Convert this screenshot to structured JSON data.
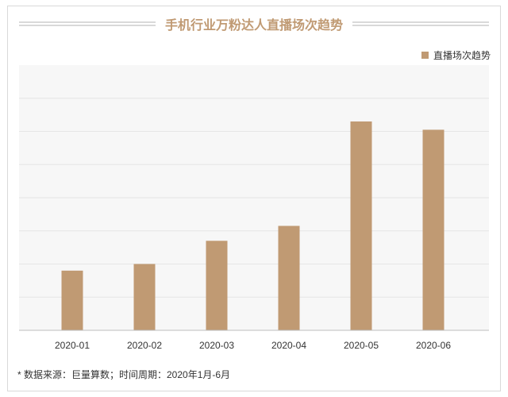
{
  "title": "手机行业万粉达人直播场次趋势",
  "legend_label": "直播场次趋势",
  "footnote": "* 数据来源：巨量算数；时间周期：2020年1月-6月",
  "colors": {
    "bar": "#c09a73",
    "plot_bg": "#f7f7f7",
    "grid": "#e6e6e6",
    "axis": "#bdbdbd",
    "title": "#c09a73"
  },
  "chart_data": {
    "type": "bar",
    "categories": [
      "2020-01",
      "2020-02",
      "2020-03",
      "2020-04",
      "2020-05",
      "2020-06"
    ],
    "series": [
      {
        "name": "直播场次趋势",
        "values": [
          18,
          20,
          27,
          31.5,
          63,
          60.5
        ]
      }
    ],
    "ylim": [
      0,
      80
    ],
    "grid": true,
    "legend": "top-right"
  }
}
